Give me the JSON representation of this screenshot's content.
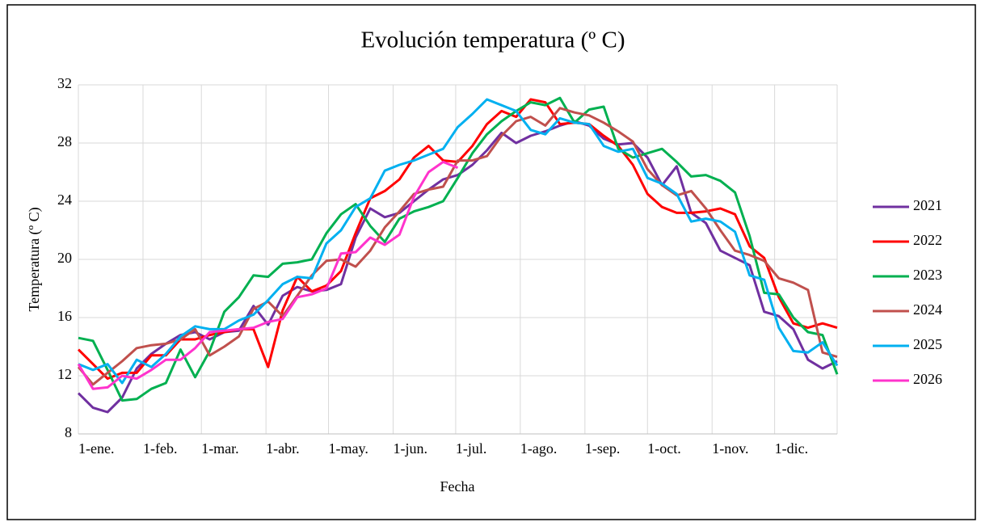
{
  "chart_data": {
    "type": "line",
    "title": "Evolución temperatura (º C)",
    "x_label": "Fecha",
    "y_label": "Temperatura (º C)",
    "x": [
      0,
      7,
      14,
      21,
      28,
      35,
      42,
      49,
      56,
      63,
      70,
      77,
      84,
      91,
      98,
      105,
      112,
      119,
      126,
      133,
      140,
      147,
      154,
      161,
      168,
      175,
      182,
      189,
      196,
      203,
      210,
      217,
      224,
      231,
      238,
      245,
      252,
      259,
      266,
      273,
      280,
      287,
      294,
      301,
      308,
      315,
      322,
      329,
      336,
      343,
      350,
      357,
      364
    ],
    "xlim": [
      0,
      364
    ],
    "xticks": [
      {
        "value": 0,
        "label": "1-ene."
      },
      {
        "value": 31,
        "label": "1-feb."
      },
      {
        "value": 59,
        "label": "1-mar."
      },
      {
        "value": 90,
        "label": "1-abr."
      },
      {
        "value": 120,
        "label": "1-may."
      },
      {
        "value": 151,
        "label": "1-jun."
      },
      {
        "value": 181,
        "label": "1-jul."
      },
      {
        "value": 212,
        "label": "1-ago."
      },
      {
        "value": 243,
        "label": "1-sep."
      },
      {
        "value": 273,
        "label": "1-oct."
      },
      {
        "value": 304,
        "label": "1-nov."
      },
      {
        "value": 334,
        "label": "1-dic."
      }
    ],
    "ylim": [
      8,
      32
    ],
    "yticks": [
      8,
      12,
      16,
      20,
      24,
      28,
      32
    ],
    "grid": true,
    "legend": "right",
    "series": [
      {
        "name": "2021",
        "color": "#7030a0",
        "values": [
          10.8,
          9.8,
          9.5,
          10.5,
          12.5,
          13.5,
          14.2,
          14.8,
          15,
          14.5,
          15,
          15.1,
          16.8,
          15.5,
          17.5,
          18.1,
          17.8,
          17.9,
          18.3,
          21.5,
          23.5,
          22.9,
          23.2,
          24,
          24.8,
          25.5,
          25.8,
          26.5,
          27.5,
          28.7,
          28,
          28.5,
          28.8,
          29.2,
          29.5,
          29.2,
          28.3,
          27.9,
          28,
          27,
          25.1,
          26.4,
          23.2,
          22.5,
          20.6,
          20.1,
          19.6,
          16.4,
          16.1,
          15.2,
          13.1,
          12.5,
          13
        ]
      },
      {
        "name": "2022",
        "color": "#ff0000",
        "values": [
          13.8,
          12.8,
          11.8,
          12.2,
          12.2,
          13.4,
          13.4,
          14.5,
          14.5,
          14.8,
          15,
          15.2,
          15.2,
          12.6,
          16.5,
          18.8,
          17.8,
          18.2,
          19.2,
          21.8,
          24.2,
          24.7,
          25.5,
          27,
          27.8,
          26.8,
          26.7,
          27.8,
          29.3,
          30.2,
          29.8,
          31,
          30.8,
          29.3,
          29.4,
          29.3,
          28.5,
          27.8,
          26.5,
          24.5,
          23.6,
          23.2,
          23.2,
          23.3,
          23.5,
          23.1,
          20.9,
          20.1,
          17.4,
          15.6,
          15.3,
          15.6,
          15.3
        ]
      },
      {
        "name": "2023",
        "color": "#00b050",
        "values": [
          14.6,
          14.4,
          12.4,
          10.3,
          10.4,
          11.1,
          11.5,
          13.8,
          11.9,
          13.7,
          16.4,
          17.4,
          18.9,
          18.8,
          19.7,
          19.8,
          20,
          21.8,
          23.1,
          23.8,
          22.3,
          21.2,
          22.8,
          23.3,
          23.6,
          24,
          25.6,
          27.3,
          28.6,
          29.5,
          30.2,
          30.8,
          30.6,
          31.1,
          29.4,
          30.3,
          30.5,
          27.6,
          27,
          27.3,
          27.6,
          26.7,
          25.7,
          25.8,
          25.4,
          24.6,
          21.6,
          17.7,
          17.6,
          16,
          15,
          14.8,
          12.1
        ]
      },
      {
        "name": "2024",
        "color": "#c0504d",
        "values": [
          12.6,
          11.4,
          12.2,
          13,
          13.9,
          14.1,
          14.2,
          14.5,
          15.2,
          13.4,
          14,
          14.7,
          16.6,
          17.1,
          16.1,
          17.5,
          18.9,
          19.9,
          20,
          19.5,
          20.6,
          22.2,
          23.3,
          24.5,
          24.8,
          25,
          26.8,
          26.8,
          27.1,
          28.5,
          29.5,
          29.8,
          29.2,
          30.4,
          30.1,
          29.9,
          29.4,
          28.8,
          28.1,
          26.2,
          25.1,
          24.4,
          24.7,
          23.5,
          22,
          20.6,
          20.3,
          19.9,
          18.7,
          18.4,
          17.9,
          13.6,
          13.3
        ]
      },
      {
        "name": "2025",
        "color": "#00b0f0",
        "values": [
          12.8,
          12.4,
          12.8,
          11.5,
          13.1,
          12.6,
          13.5,
          14.7,
          15.4,
          15.2,
          15.2,
          15.8,
          16.2,
          17.2,
          18.3,
          18.8,
          18.7,
          21.1,
          22,
          23.6,
          24.2,
          26.1,
          26.5,
          26.8,
          27.2,
          27.6,
          29.1,
          30,
          31,
          30.6,
          30.2,
          28.9,
          28.6,
          29.7,
          29.4,
          29.3,
          27.8,
          27.4,
          27.6,
          25.6,
          25.2,
          24.5,
          22.6,
          22.8,
          22.6,
          21.9,
          18.9,
          18.6,
          15.3,
          13.7,
          13.6,
          14.3,
          12.7
        ]
      },
      {
        "name": "2026",
        "color": "#ff33cc",
        "values": [
          12.8,
          11.1,
          11.2,
          12,
          11.8,
          12.4,
          13.1,
          13.1,
          13.9,
          15,
          15.1,
          15.2,
          15.3,
          15.7,
          15.9,
          17.4,
          17.6,
          18,
          20.4,
          20.5,
          21.5,
          21,
          21.7,
          24.3,
          26,
          26.7,
          26.3,
          null,
          null,
          null,
          null,
          null,
          null,
          null,
          null,
          null,
          null,
          null,
          null,
          null,
          null,
          null,
          null,
          null,
          null,
          null,
          null,
          null,
          null,
          null,
          null,
          null,
          null
        ]
      }
    ]
  }
}
